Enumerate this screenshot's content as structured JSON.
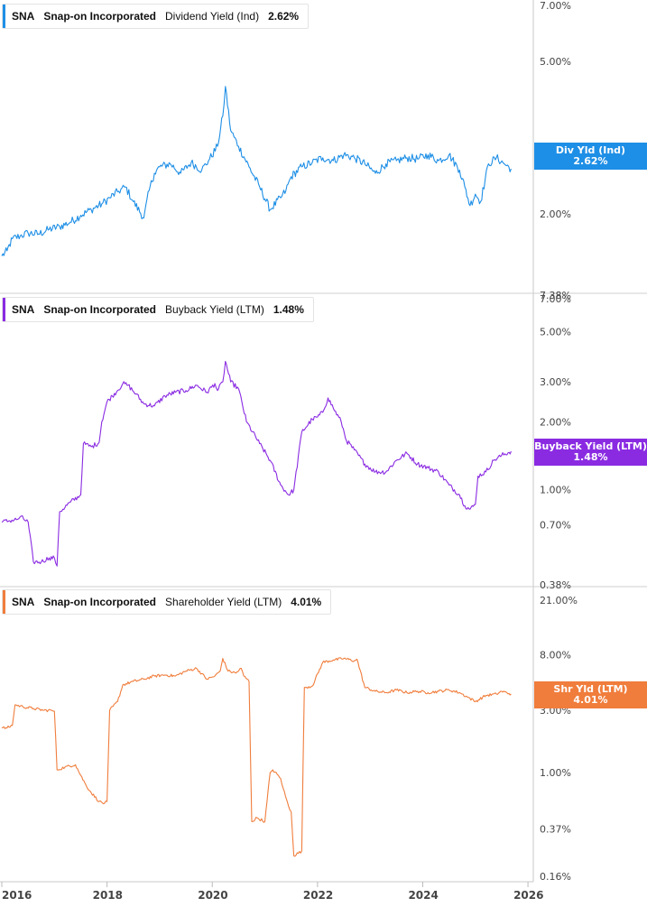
{
  "chart_data": [
    {
      "type": "line",
      "ticker": "SNA",
      "company": "Snap-on Incorporated",
      "metric": "Dividend Yield (Ind)",
      "current_value": "2.62%",
      "badge_label": "Div Yld (Ind)",
      "badge_value": "2.62%",
      "color": "#1e8fe6",
      "scale": "log",
      "ylim": [
        1.45,
        7.0
      ],
      "y_ticks": [
        "7.00%",
        "5.00%",
        "3.00%",
        "2.00%"
      ],
      "y_tick_values": [
        7.0,
        5.0,
        3.0,
        2.0
      ],
      "series": [
        {
          "x": [
            2016.0,
            2016.1,
            2016.2,
            2016.35,
            2016.5,
            2016.7,
            2016.9,
            2017.1,
            2017.3,
            2017.5,
            2017.7,
            2017.9,
            2018.05,
            2018.2,
            2018.35,
            2018.5,
            2018.7,
            2018.8,
            2018.9,
            2019.0,
            2019.2,
            2019.4,
            2019.6,
            2019.8,
            2019.95,
            2020.1,
            2020.2,
            2020.25,
            2020.35,
            2020.5,
            2020.7,
            2020.9,
            2021.1,
            2021.3,
            2021.4,
            2021.5,
            2021.7,
            2021.9,
            2022.1,
            2022.3,
            2022.5,
            2022.7,
            2022.9,
            2023.1,
            2023.3,
            2023.5,
            2023.7,
            2023.9,
            2024.1,
            2024.3,
            2024.5,
            2024.7,
            2024.8,
            2024.9,
            2025.0,
            2025.1,
            2025.25,
            2025.4,
            2025.55,
            2025.68
          ],
          "values": [
            1.55,
            1.6,
            1.72,
            1.75,
            1.78,
            1.77,
            1.82,
            1.85,
            1.9,
            1.98,
            2.05,
            2.12,
            2.2,
            2.28,
            2.35,
            2.15,
            1.95,
            2.3,
            2.55,
            2.65,
            2.7,
            2.55,
            2.72,
            2.6,
            2.78,
            3.0,
            3.6,
            4.3,
            3.3,
            3.0,
            2.65,
            2.35,
            2.05,
            2.2,
            2.3,
            2.5,
            2.65,
            2.72,
            2.8,
            2.75,
            2.85,
            2.8,
            2.7,
            2.55,
            2.7,
            2.75,
            2.8,
            2.78,
            2.85,
            2.75,
            2.85,
            2.6,
            2.35,
            2.1,
            2.25,
            2.15,
            2.7,
            2.8,
            2.7,
            2.62
          ]
        }
      ]
    },
    {
      "type": "line",
      "ticker": "SNA",
      "company": "Snap-on Incorporated",
      "metric": "Buyback Yield (LTM)",
      "current_value": "1.48%",
      "badge_label": "Buyback Yield (LTM)",
      "badge_value": "1.48%",
      "color": "#8a2be2",
      "scale": "log",
      "ylim": [
        0.38,
        7.0
      ],
      "y_ticks": [
        "7.38%",
        "7.00%",
        "5.00%",
        "3.00%",
        "2.00%",
        "1.00%",
        "0.70%",
        "0.38%"
      ],
      "y_tick_values": [
        7.38,
        7.0,
        5.0,
        3.0,
        2.0,
        1.0,
        0.7,
        0.38
      ],
      "series": [
        {
          "x": [
            2016.0,
            2016.15,
            2016.3,
            2016.35,
            2016.5,
            2016.6,
            2016.75,
            2016.9,
            2017.0,
            2017.05,
            2017.1,
            2017.3,
            2017.5,
            2017.55,
            2017.7,
            2017.85,
            2017.9,
            2018.0,
            2018.1,
            2018.2,
            2018.3,
            2018.4,
            2018.55,
            2018.7,
            2018.9,
            2019.1,
            2019.3,
            2019.5,
            2019.7,
            2019.9,
            2020.05,
            2020.1,
            2020.2,
            2020.25,
            2020.35,
            2020.5,
            2020.65,
            2020.9,
            2021.1,
            2021.3,
            2021.45,
            2021.55,
            2021.7,
            2021.9,
            2022.0,
            2022.1,
            2022.2,
            2022.3,
            2022.45,
            2022.55,
            2022.7,
            2022.9,
            2023.1,
            2023.3,
            2023.5,
            2023.7,
            2023.9,
            2024.1,
            2024.3,
            2024.5,
            2024.7,
            2024.8,
            2024.9,
            2025.0,
            2025.05,
            2025.2,
            2025.35,
            2025.5,
            2025.68
          ],
          "values": [
            0.72,
            0.73,
            0.74,
            0.76,
            0.72,
            0.48,
            0.48,
            0.5,
            0.5,
            0.46,
            0.8,
            0.88,
            0.95,
            1.6,
            1.55,
            1.62,
            2.0,
            2.45,
            2.6,
            2.75,
            2.95,
            2.9,
            2.65,
            2.4,
            2.35,
            2.6,
            2.7,
            2.75,
            2.9,
            2.7,
            2.95,
            2.75,
            3.0,
            3.7,
            3.0,
            2.8,
            2.0,
            1.6,
            1.35,
            1.05,
            0.95,
            1.0,
            1.8,
            2.05,
            2.1,
            2.2,
            2.55,
            2.3,
            2.0,
            1.65,
            1.5,
            1.3,
            1.2,
            1.2,
            1.35,
            1.45,
            1.3,
            1.25,
            1.2,
            1.05,
            0.95,
            0.85,
            0.82,
            0.86,
            1.15,
            1.2,
            1.35,
            1.42,
            1.48
          ]
        }
      ]
    },
    {
      "type": "line",
      "ticker": "SNA",
      "company": "Snap-on Incorporated",
      "metric": "Shareholder Yield (LTM)",
      "current_value": "4.01%",
      "badge_label": "Shr Yld (LTM)",
      "badge_value": "4.01%",
      "color": "#f07d3c",
      "scale": "log",
      "ylim": [
        0.16,
        21.0
      ],
      "y_ticks": [
        "21.00%",
        "8.00%",
        "3.00%",
        "1.00%",
        "0.37%",
        "0.16%"
      ],
      "y_tick_values": [
        21.0,
        8.0,
        3.0,
        1.0,
        0.37,
        0.16
      ],
      "series": [
        {
          "x": [
            2016.0,
            2016.1,
            2016.2,
            2016.25,
            2016.4,
            2016.6,
            2016.8,
            2016.95,
            2017.0,
            2017.05,
            2017.2,
            2017.4,
            2017.5,
            2017.6,
            2017.7,
            2017.85,
            2017.95,
            2018.0,
            2018.05,
            2018.2,
            2018.3,
            2018.5,
            2018.7,
            2018.9,
            2019.1,
            2019.3,
            2019.5,
            2019.7,
            2019.9,
            2020.05,
            2020.15,
            2020.2,
            2020.3,
            2020.45,
            2020.55,
            2020.6,
            2020.7,
            2020.75,
            2020.85,
            2021.0,
            2021.1,
            2021.15,
            2021.3,
            2021.35,
            2021.45,
            2021.5,
            2021.55,
            2021.7,
            2021.75,
            2021.9,
            2022.1,
            2022.3,
            2022.5,
            2022.7,
            2022.75,
            2022.9,
            2023.1,
            2023.3,
            2023.5,
            2023.7,
            2023.9,
            2024.1,
            2024.3,
            2024.5,
            2024.7,
            2024.85,
            2025.0,
            2025.2,
            2025.4,
            2025.5,
            2025.68
          ],
          "values": [
            2.2,
            2.2,
            2.3,
            3.3,
            3.2,
            3.1,
            3.0,
            3.0,
            2.95,
            1.05,
            1.1,
            1.15,
            0.95,
            0.8,
            0.7,
            0.6,
            0.58,
            0.6,
            3.0,
            3.5,
            4.7,
            5.0,
            5.2,
            5.5,
            5.6,
            5.5,
            6.0,
            6.3,
            5.2,
            5.5,
            6.0,
            7.5,
            6.0,
            5.8,
            6.3,
            5.5,
            5.0,
            0.42,
            0.45,
            0.42,
            1.0,
            1.05,
            0.9,
            0.75,
            0.55,
            0.5,
            0.23,
            0.25,
            4.5,
            4.6,
            7.0,
            7.3,
            7.5,
            7.2,
            7.4,
            4.5,
            4.2,
            4.1,
            4.3,
            4.1,
            4.2,
            4.1,
            4.2,
            4.3,
            4.1,
            3.8,
            3.5,
            3.9,
            4.0,
            4.2,
            4.01
          ]
        }
      ]
    }
  ],
  "x_axis": {
    "ticks": [
      "2016",
      "2018",
      "2020",
      "2022",
      "2024",
      "2026"
    ],
    "tick_values": [
      2016,
      2018,
      2020,
      2022,
      2024,
      2026
    ],
    "range": [
      2016.0,
      2026.05
    ]
  }
}
